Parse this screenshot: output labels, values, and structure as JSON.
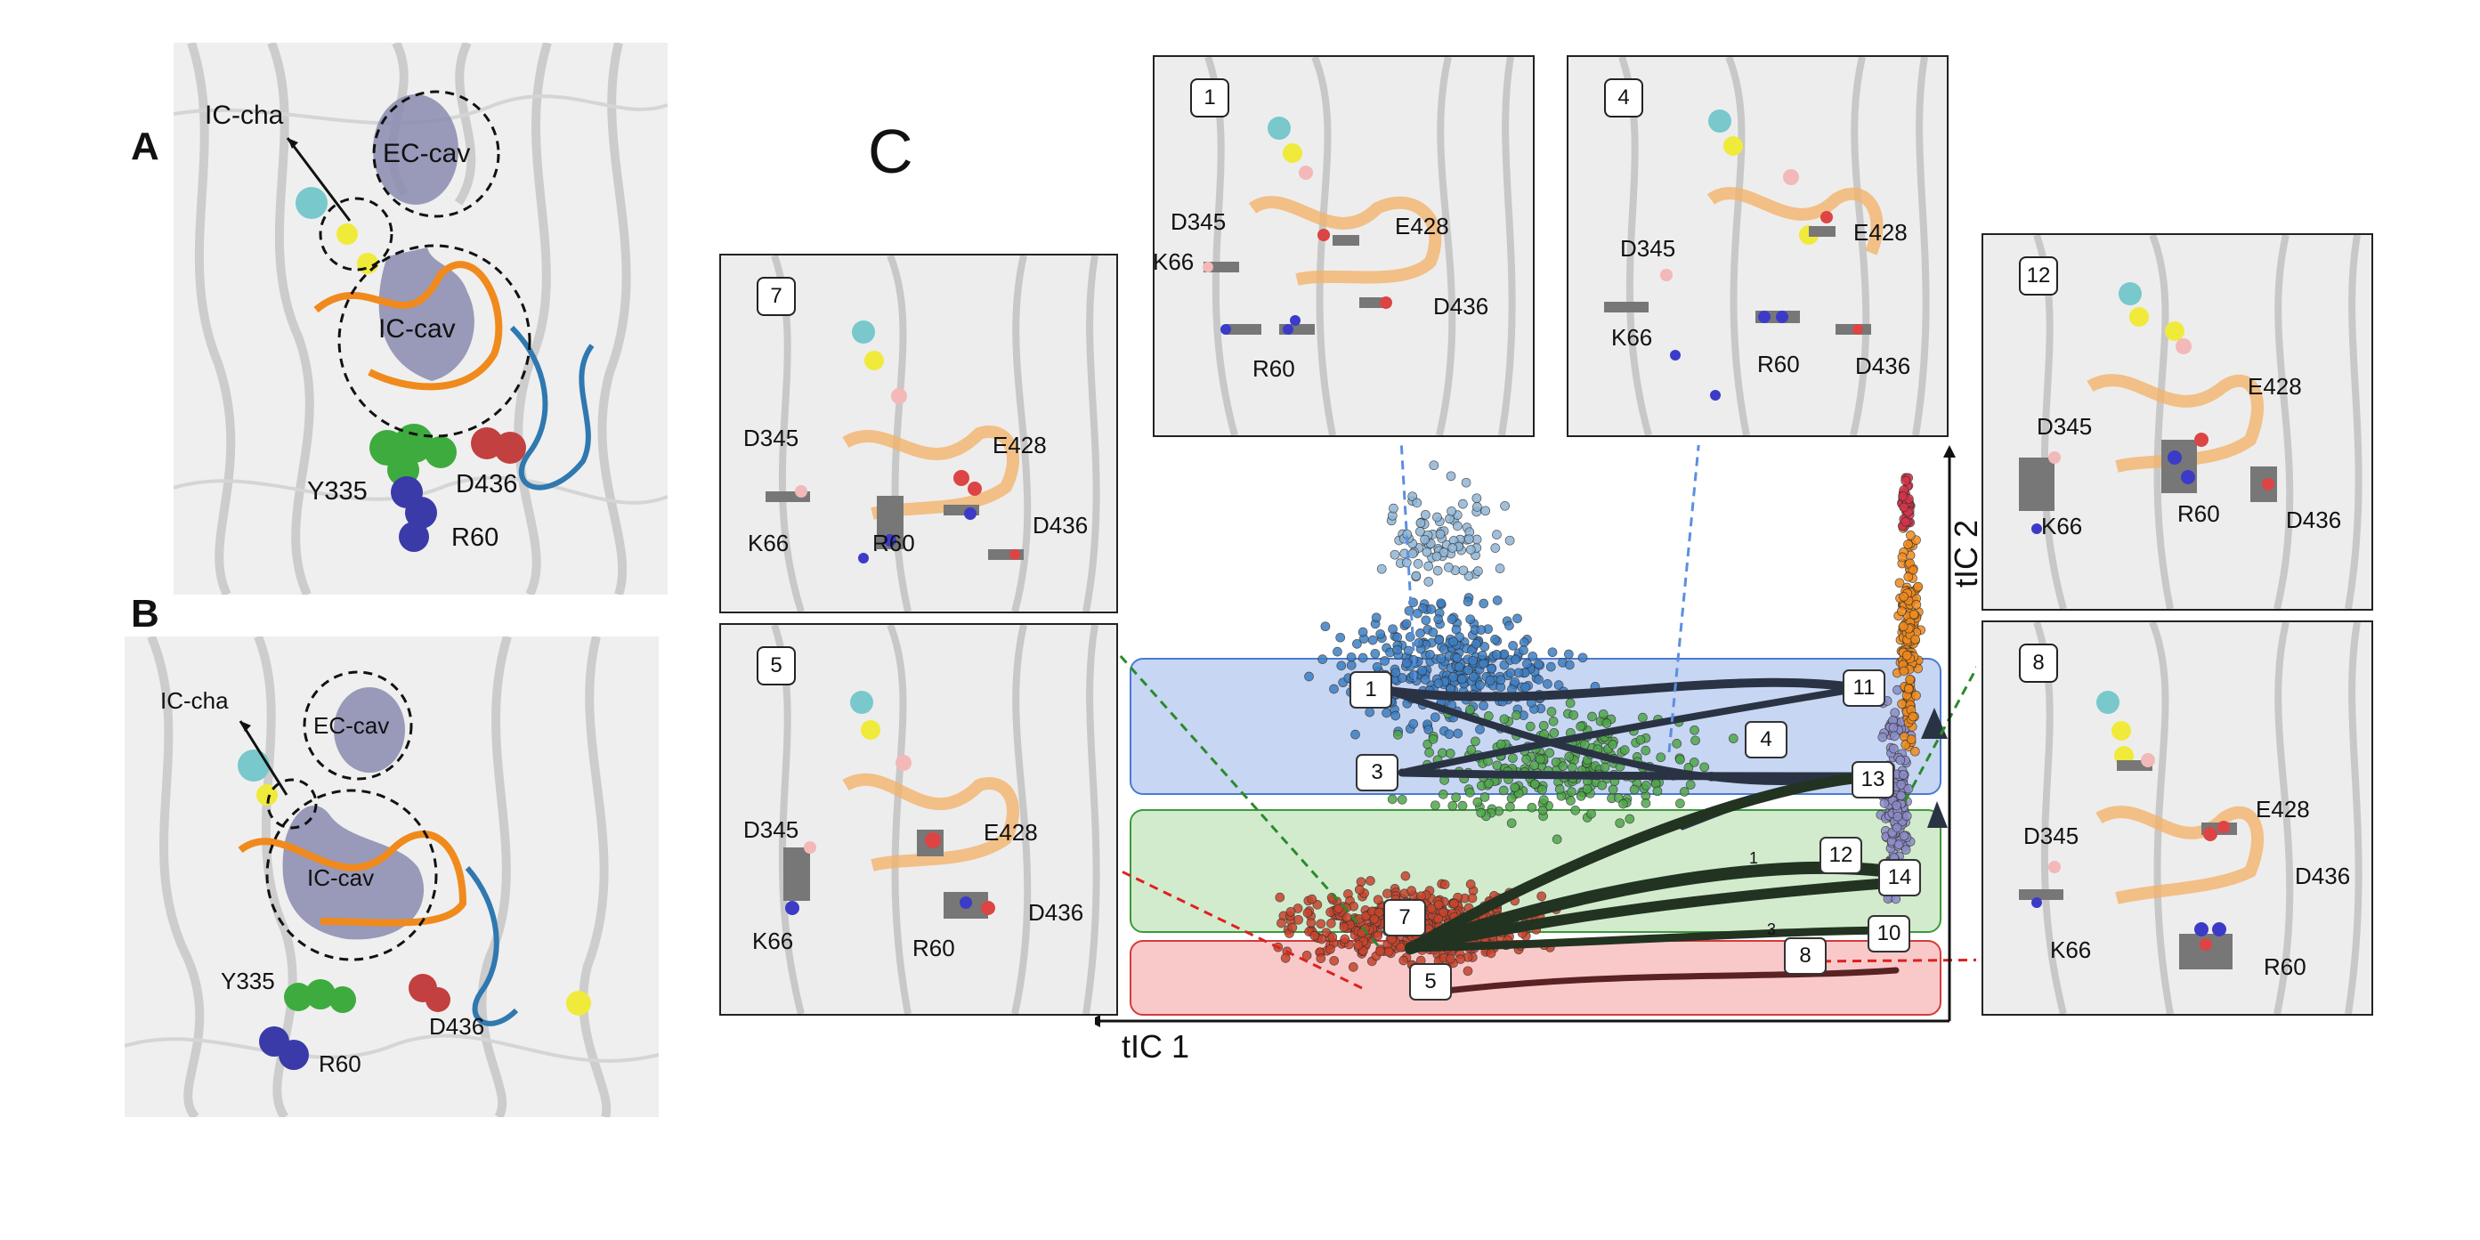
{
  "panel_a": {
    "letter": "A",
    "labels": {
      "ic_cha": "IC-cha",
      "ec_cav": "EC-cav",
      "ic_cav": "IC-cav",
      "y335": "Y335",
      "d436": "D436",
      "r60": "R60"
    }
  },
  "panel_b": {
    "letter": "B",
    "labels": {
      "ic_cha": "IC-cha",
      "ec_cav": "EC-cav",
      "ic_cav": "IC-cav",
      "y335": "Y335",
      "d436": "D436",
      "r60": "R60"
    }
  },
  "panel_c": {
    "letter": "C",
    "axes": {
      "x_label": "tIC 1",
      "y_label": "tIC 2"
    },
    "states": [
      {
        "id": "1",
        "label": "1"
      },
      {
        "id": "3",
        "label": "3"
      },
      {
        "id": "4",
        "label": "4"
      },
      {
        "id": "5",
        "label": "5"
      },
      {
        "id": "7",
        "label": "7"
      },
      {
        "id": "8",
        "label": "8"
      },
      {
        "id": "10",
        "label": "10"
      },
      {
        "id": "11",
        "label": "11"
      },
      {
        "id": "12",
        "label": "12"
      },
      {
        "id": "13",
        "label": "13"
      },
      {
        "id": "14",
        "label": "14"
      }
    ],
    "flux_small_labels": [
      "1",
      "3"
    ],
    "insets": {
      "i1": {
        "num": "1",
        "residues": [
          "D345",
          "E428",
          "K66",
          "D436",
          "R60"
        ]
      },
      "i4": {
        "num": "4",
        "residues": [
          "D345",
          "E428",
          "K66",
          "R60",
          "D436"
        ]
      },
      "i7": {
        "num": "7",
        "residues": [
          "D345",
          "E428",
          "K66",
          "R60",
          "D436"
        ]
      },
      "i5": {
        "num": "5",
        "residues": [
          "D345",
          "E428",
          "K66",
          "R60",
          "D436"
        ]
      },
      "i12": {
        "num": "12",
        "residues": [
          "D345",
          "E428",
          "K66",
          "R60",
          "D436"
        ]
      },
      "i8": {
        "num": "8",
        "residues": [
          "D345",
          "E428",
          "D436",
          "K66",
          "R60"
        ]
      }
    },
    "band_colors": {
      "blue": "#c7d6f3",
      "green": "#d2ebcd",
      "red": "#f9c9c9"
    },
    "point_colors": {
      "blue": "#3d7fc4",
      "lightblue": "#8fb6d6",
      "green": "#4fa64a",
      "red": "#c8442b",
      "orange": "#f08a1c",
      "purple": "#8c8cc8",
      "crimson": "#d8344a"
    }
  }
}
